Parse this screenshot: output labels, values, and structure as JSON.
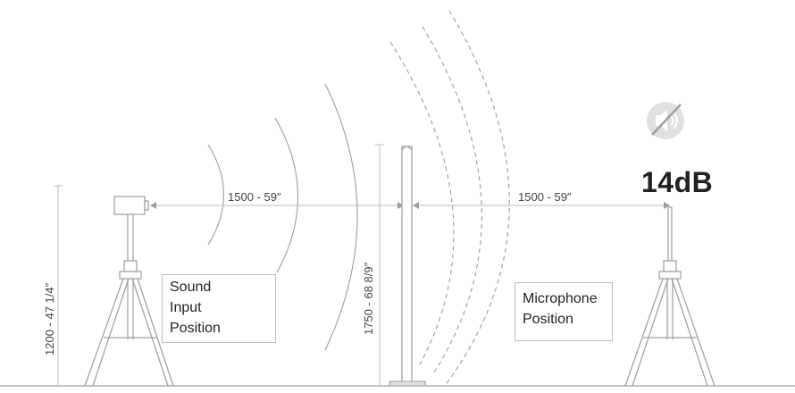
{
  "dimensions": {
    "source_to_panel": "1500 - 59″",
    "panel_to_mic": "1500 - 59″",
    "source_height": "1200 - 47 1/4″",
    "panel_height": "1750 - 68 8/9″"
  },
  "sound_level": "14dB",
  "labels": {
    "sound_input": [
      "Sound",
      "Input",
      "Position"
    ],
    "microphone": [
      "Microphone",
      "Position"
    ]
  },
  "icons": {
    "speaker": "speaker-muted-icon",
    "source": "loudspeaker-icon",
    "microphone": "microphone-icon"
  },
  "colors": {
    "line": "#bdbdbd",
    "text": "#222222",
    "icon_bg": "#d9d9d9"
  }
}
